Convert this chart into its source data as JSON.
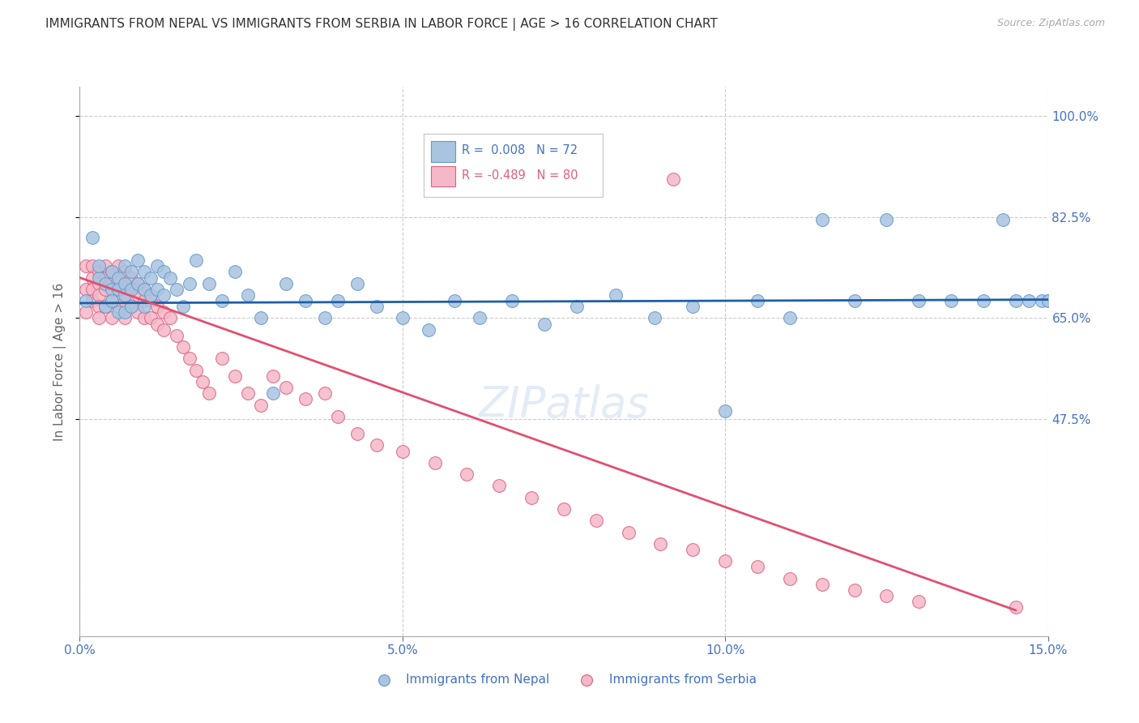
{
  "title": "IMMIGRANTS FROM NEPAL VS IMMIGRANTS FROM SERBIA IN LABOR FORCE | AGE > 16 CORRELATION CHART",
  "source": "Source: ZipAtlas.com",
  "ylabel": "In Labor Force | Age > 16",
  "xlim": [
    0.0,
    0.15
  ],
  "ylim": [
    0.1,
    1.05
  ],
  "yticks": [
    0.475,
    0.65,
    0.825,
    1.0
  ],
  "ytick_labels": [
    "47.5%",
    "65.0%",
    "82.5%",
    "100.0%"
  ],
  "xticks": [
    0.0,
    0.05,
    0.1,
    0.15
  ],
  "xtick_labels": [
    "0.0%",
    "5.0%",
    "10.0%",
    "15.0%"
  ],
  "nepal_color": "#a8c4e0",
  "nepal_edge": "#6699cc",
  "serbia_color": "#f4b8c8",
  "serbia_edge": "#e06080",
  "trend_nepal_color": "#1f5fa6",
  "trend_serbia_color": "#e05070",
  "nepal_R": 0.008,
  "nepal_N": 72,
  "serbia_R": -0.489,
  "serbia_N": 80,
  "nepal_scatter_x": [
    0.001,
    0.002,
    0.003,
    0.003,
    0.004,
    0.004,
    0.005,
    0.005,
    0.005,
    0.006,
    0.006,
    0.006,
    0.007,
    0.007,
    0.007,
    0.007,
    0.008,
    0.008,
    0.008,
    0.009,
    0.009,
    0.01,
    0.01,
    0.01,
    0.011,
    0.011,
    0.012,
    0.012,
    0.013,
    0.013,
    0.014,
    0.015,
    0.016,
    0.017,
    0.018,
    0.02,
    0.022,
    0.024,
    0.026,
    0.028,
    0.03,
    0.032,
    0.035,
    0.038,
    0.04,
    0.043,
    0.046,
    0.05,
    0.054,
    0.058,
    0.062,
    0.067,
    0.072,
    0.077,
    0.083,
    0.089,
    0.095,
    0.1,
    0.105,
    0.11,
    0.115,
    0.12,
    0.125,
    0.13,
    0.135,
    0.14,
    0.143,
    0.145,
    0.147,
    0.149,
    0.15,
    0.15
  ],
  "nepal_scatter_y": [
    0.68,
    0.79,
    0.72,
    0.74,
    0.71,
    0.67,
    0.73,
    0.7,
    0.68,
    0.72,
    0.7,
    0.66,
    0.74,
    0.71,
    0.69,
    0.66,
    0.73,
    0.7,
    0.67,
    0.75,
    0.71,
    0.73,
    0.7,
    0.67,
    0.72,
    0.69,
    0.74,
    0.7,
    0.73,
    0.69,
    0.72,
    0.7,
    0.67,
    0.71,
    0.75,
    0.71,
    0.68,
    0.73,
    0.69,
    0.65,
    0.52,
    0.71,
    0.68,
    0.65,
    0.68,
    0.71,
    0.67,
    0.65,
    0.63,
    0.68,
    0.65,
    0.68,
    0.64,
    0.67,
    0.69,
    0.65,
    0.67,
    0.49,
    0.68,
    0.65,
    0.82,
    0.68,
    0.82,
    0.68,
    0.68,
    0.68,
    0.82,
    0.68,
    0.68,
    0.68,
    0.68,
    0.68
  ],
  "serbia_scatter_x": [
    0.001,
    0.001,
    0.001,
    0.002,
    0.002,
    0.002,
    0.002,
    0.003,
    0.003,
    0.003,
    0.003,
    0.003,
    0.004,
    0.004,
    0.004,
    0.004,
    0.005,
    0.005,
    0.005,
    0.005,
    0.006,
    0.006,
    0.006,
    0.006,
    0.007,
    0.007,
    0.007,
    0.007,
    0.008,
    0.008,
    0.008,
    0.009,
    0.009,
    0.009,
    0.01,
    0.01,
    0.01,
    0.011,
    0.011,
    0.012,
    0.012,
    0.013,
    0.013,
    0.014,
    0.015,
    0.016,
    0.017,
    0.018,
    0.019,
    0.02,
    0.022,
    0.024,
    0.026,
    0.028,
    0.03,
    0.032,
    0.035,
    0.038,
    0.04,
    0.043,
    0.046,
    0.05,
    0.055,
    0.06,
    0.065,
    0.07,
    0.075,
    0.08,
    0.085,
    0.09,
    0.092,
    0.095,
    0.1,
    0.105,
    0.11,
    0.115,
    0.12,
    0.125,
    0.13,
    0.145
  ],
  "serbia_scatter_y": [
    0.74,
    0.7,
    0.66,
    0.74,
    0.72,
    0.7,
    0.68,
    0.73,
    0.71,
    0.69,
    0.67,
    0.65,
    0.74,
    0.72,
    0.7,
    0.67,
    0.73,
    0.71,
    0.68,
    0.65,
    0.74,
    0.72,
    0.7,
    0.67,
    0.73,
    0.71,
    0.68,
    0.65,
    0.72,
    0.7,
    0.67,
    0.71,
    0.69,
    0.66,
    0.7,
    0.68,
    0.65,
    0.68,
    0.65,
    0.67,
    0.64,
    0.66,
    0.63,
    0.65,
    0.62,
    0.6,
    0.58,
    0.56,
    0.54,
    0.52,
    0.58,
    0.55,
    0.52,
    0.5,
    0.55,
    0.53,
    0.51,
    0.52,
    0.48,
    0.45,
    0.43,
    0.42,
    0.4,
    0.38,
    0.36,
    0.34,
    0.32,
    0.3,
    0.28,
    0.26,
    0.89,
    0.25,
    0.23,
    0.22,
    0.2,
    0.19,
    0.18,
    0.17,
    0.16,
    0.15
  ],
  "serbia_trend_x": [
    0.0,
    0.145
  ],
  "serbia_trend_y": [
    0.72,
    0.145
  ],
  "nepal_trend_x": [
    0.0,
    0.15
  ],
  "nepal_trend_y": [
    0.676,
    0.682
  ],
  "background_color": "#ffffff",
  "grid_color": "#cccccc",
  "title_fontsize": 11,
  "tick_label_color": "#4472c4",
  "legend_R_color_nepal": "#4472c4",
  "legend_R_color_serbia": "#e06080"
}
